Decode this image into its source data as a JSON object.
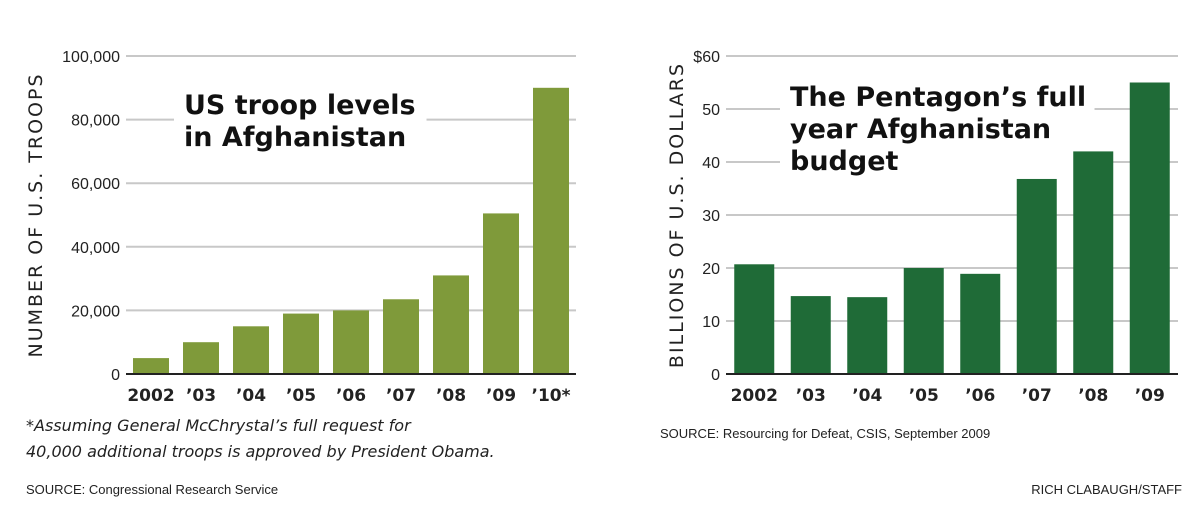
{
  "chart_data": [
    {
      "type": "bar",
      "title": [
        "US troop levels",
        "in Afghanistan"
      ],
      "ylabel": "NUMBER OF U.S. TROOPS",
      "categories": [
        "2002",
        "’03",
        "’04",
        "’05",
        "’06",
        "’07",
        "’08",
        "’09",
        "’10*"
      ],
      "values": [
        5000,
        10000,
        15000,
        19000,
        20000,
        23500,
        31000,
        50500,
        90000
      ],
      "ylim": [
        0,
        100000
      ],
      "yticks": [
        "0",
        "20,000",
        "40,000",
        "60,000",
        "80,000",
        "100,000"
      ],
      "grid": true,
      "color": "#7f9a3a",
      "footnote": [
        "*Assuming General McChrystal’s full request for",
        "40,000 additional troops is approved by President Obama."
      ],
      "source": "SOURCE: Congressional Research Service"
    },
    {
      "type": "bar",
      "title": [
        "The Pentagon’s full",
        "year Afghanistan",
        "budget"
      ],
      "ylabel": "BILLIONS OF U.S. DOLLARS",
      "categories": [
        "2002",
        "’03",
        "’04",
        "’05",
        "’06",
        "’07",
        "’08",
        "’09"
      ],
      "values": [
        20.7,
        14.7,
        14.5,
        20,
        18.9,
        36.8,
        42,
        55
      ],
      "ylim": [
        0,
        60
      ],
      "yticks": [
        "0",
        "10",
        "20",
        "30",
        "40",
        "50",
        "$60"
      ],
      "grid": true,
      "color": "#1f6b37",
      "source": "SOURCE: Resourcing for Defeat, CSIS, September 2009"
    }
  ],
  "credit": "RICH CLABAUGH/STAFF"
}
